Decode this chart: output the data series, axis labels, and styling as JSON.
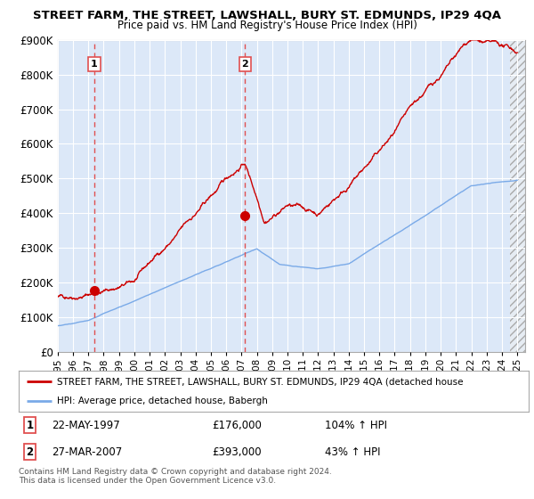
{
  "title": "STREET FARM, THE STREET, LAWSHALL, BURY ST. EDMUNDS, IP29 4QA",
  "subtitle": "Price paid vs. HM Land Registry's House Price Index (HPI)",
  "legend_line1": "STREET FARM, THE STREET, LAWSHALL, BURY ST. EDMUNDS, IP29 4QA (detached house",
  "legend_line2": "HPI: Average price, detached house, Babergh",
  "footer": "Contains HM Land Registry data © Crown copyright and database right 2024.\nThis data is licensed under the Open Government Licence v3.0.",
  "sale1_label": "1",
  "sale1_date": "22-MAY-1997",
  "sale1_price": "£176,000",
  "sale1_hpi": "104% ↑ HPI",
  "sale2_label": "2",
  "sale2_date": "27-MAR-2007",
  "sale2_price": "£393,000",
  "sale2_hpi": "43% ↑ HPI",
  "sale1_x": 1997.39,
  "sale1_y": 176000,
  "sale2_x": 2007.24,
  "sale2_y": 393000,
  "hpi_color": "#7aaae8",
  "price_color": "#cc0000",
  "vline_color": "#e05050",
  "ylim": [
    0,
    900000
  ],
  "xlim_start": 1995.0,
  "xlim_end": 2025.5,
  "hatch_start": 2024.5,
  "background_color": "#dce8f8",
  "background_hatch": "#c8d8ec"
}
